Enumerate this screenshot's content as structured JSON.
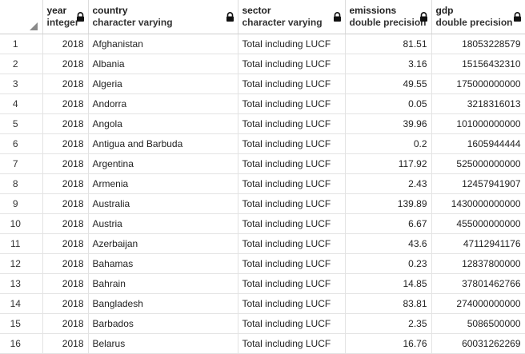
{
  "columns": [
    {
      "name": "year",
      "type": "integer"
    },
    {
      "name": "country",
      "type": "character varying"
    },
    {
      "name": "sector",
      "type": "character varying"
    },
    {
      "name": "emissions",
      "type": "double precision"
    },
    {
      "name": "gdp",
      "type": "double precision"
    }
  ],
  "rows": [
    {
      "n": "1",
      "year": "2018",
      "country": "Afghanistan",
      "sector": "Total including LUCF",
      "emissions": "81.51",
      "gdp": "18053228579"
    },
    {
      "n": "2",
      "year": "2018",
      "country": "Albania",
      "sector": "Total including LUCF",
      "emissions": "3.16",
      "gdp": "15156432310"
    },
    {
      "n": "3",
      "year": "2018",
      "country": "Algeria",
      "sector": "Total including LUCF",
      "emissions": "49.55",
      "gdp": "175000000000"
    },
    {
      "n": "4",
      "year": "2018",
      "country": "Andorra",
      "sector": "Total including LUCF",
      "emissions": "0.05",
      "gdp": "3218316013"
    },
    {
      "n": "5",
      "year": "2018",
      "country": "Angola",
      "sector": "Total including LUCF",
      "emissions": "39.96",
      "gdp": "101000000000"
    },
    {
      "n": "6",
      "year": "2018",
      "country": "Antigua and Barbuda",
      "sector": "Total including LUCF",
      "emissions": "0.2",
      "gdp": "1605944444"
    },
    {
      "n": "7",
      "year": "2018",
      "country": "Argentina",
      "sector": "Total including LUCF",
      "emissions": "117.92",
      "gdp": "525000000000"
    },
    {
      "n": "8",
      "year": "2018",
      "country": "Armenia",
      "sector": "Total including LUCF",
      "emissions": "2.43",
      "gdp": "12457941907"
    },
    {
      "n": "9",
      "year": "2018",
      "country": "Australia",
      "sector": "Total including LUCF",
      "emissions": "139.89",
      "gdp": "1430000000000"
    },
    {
      "n": "10",
      "year": "2018",
      "country": "Austria",
      "sector": "Total including LUCF",
      "emissions": "6.67",
      "gdp": "455000000000"
    },
    {
      "n": "11",
      "year": "2018",
      "country": "Azerbaijan",
      "sector": "Total including LUCF",
      "emissions": "43.6",
      "gdp": "47112941176"
    },
    {
      "n": "12",
      "year": "2018",
      "country": "Bahamas",
      "sector": "Total including LUCF",
      "emissions": "0.23",
      "gdp": "12837800000"
    },
    {
      "n": "13",
      "year": "2018",
      "country": "Bahrain",
      "sector": "Total including LUCF",
      "emissions": "14.85",
      "gdp": "37801462766"
    },
    {
      "n": "14",
      "year": "2018",
      "country": "Bangladesh",
      "sector": "Total including LUCF",
      "emissions": "83.81",
      "gdp": "274000000000"
    },
    {
      "n": "15",
      "year": "2018",
      "country": "Barbados",
      "sector": "Total including LUCF",
      "emissions": "2.35",
      "gdp": "5086500000"
    },
    {
      "n": "16",
      "year": "2018",
      "country": "Belarus",
      "sector": "Total including LUCF",
      "emissions": "16.76",
      "gdp": "60031262269"
    }
  ],
  "icons": {
    "column_lock": "lock-icon",
    "select_all": "select-all-corner-icon"
  },
  "colors": {
    "header_bg": "#ffffff",
    "grid_line": "#e3e3e3",
    "text": "#222222"
  }
}
